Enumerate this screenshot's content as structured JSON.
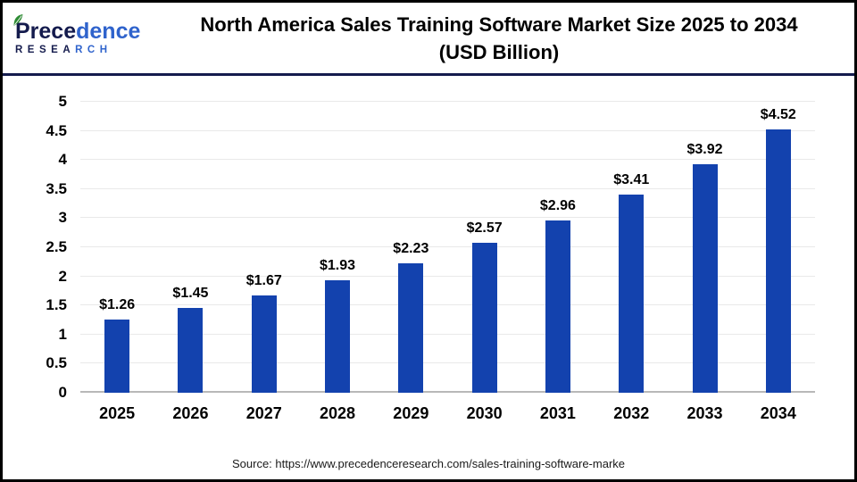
{
  "header": {
    "logo": {
      "brand_part1": "Prece",
      "brand_part2": "dence",
      "subtitle_part1": "RESEA",
      "subtitle_part2": "RCH"
    },
    "title_line1": "North America Sales Training Software Market Size 2025 to 2034",
    "title_line2": "(USD Billion)"
  },
  "chart_data": {
    "type": "bar",
    "title": "North America Sales Training Software Market Size 2025 to 2034 (USD Billion)",
    "categories": [
      "2025",
      "2026",
      "2027",
      "2028",
      "2029",
      "2030",
      "2031",
      "2032",
      "2033",
      "2034"
    ],
    "values": [
      1.26,
      1.45,
      1.67,
      1.93,
      2.23,
      2.57,
      2.96,
      3.41,
      3.92,
      4.52
    ],
    "bar_labels": [
      "$1.26",
      "$1.45",
      "$1.67",
      "$1.93",
      "$2.23",
      "$2.57",
      "$2.96",
      "$3.41",
      "$3.92",
      "$4.52"
    ],
    "xlabel": "",
    "ylabel": "",
    "ylim": [
      0,
      5
    ],
    "yticks": [
      0,
      0.5,
      1,
      1.5,
      2,
      2.5,
      3,
      3.5,
      4,
      4.5,
      5
    ],
    "ytick_labels": [
      "0",
      "0.5",
      "1",
      "1.5",
      "2",
      "2.5",
      "3",
      "3.5",
      "4",
      "4.5",
      "5"
    ],
    "grid": true,
    "legend": false
  },
  "footer": {
    "source": "Source: https://www.precedenceresearch.com/sales-training-software-marke"
  },
  "colors": {
    "bar": "#1342AE",
    "divider": "#141B4D",
    "grid": "#E9E9E9",
    "baseline": "#B8B8B8",
    "brand_dark": "#141B4D",
    "brand_blue": "#2F63CC",
    "leaf_green": "#2E8B34"
  }
}
